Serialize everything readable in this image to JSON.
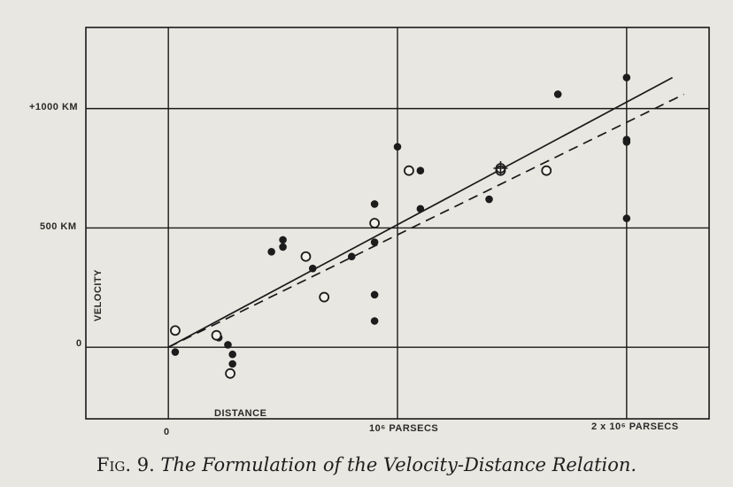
{
  "caption": {
    "figure": "Fig. 9.",
    "title": "The Formulation of the Velocity-Distance Relation."
  },
  "chart_data": {
    "type": "scatter",
    "xlabel": "DISTANCE",
    "ylabel": "VELOCITY",
    "xlim": [
      -0.36,
      2.36
    ],
    "ylim": [
      -0.3,
      1.34
    ],
    "x_ticks": [
      {
        "value": 0,
        "label": "0"
      },
      {
        "value": 1,
        "label": "10⁶ PARSECS"
      },
      {
        "value": 2,
        "label": "2 x 10⁶ PARSECS"
      }
    ],
    "y_ticks": [
      {
        "value": 0,
        "label": "0"
      },
      {
        "value": 0.5,
        "label": "500 KM"
      },
      {
        "value": 1.0,
        "label": "+1000 KM"
      }
    ],
    "grid": true,
    "series": [
      {
        "marker": "filled",
        "points": [
          [
            0.03,
            -0.02
          ],
          [
            0.22,
            0.04
          ],
          [
            0.26,
            0.01
          ],
          [
            0.28,
            -0.03
          ],
          [
            0.28,
            -0.07
          ],
          [
            0.45,
            0.4
          ],
          [
            0.5,
            0.42
          ],
          [
            0.5,
            0.45
          ],
          [
            0.63,
            0.33
          ],
          [
            0.8,
            0.38
          ],
          [
            0.9,
            0.6
          ],
          [
            0.9,
            0.44
          ],
          [
            0.9,
            0.22
          ],
          [
            0.9,
            0.11
          ],
          [
            1.0,
            0.84
          ],
          [
            1.1,
            0.74
          ],
          [
            1.1,
            0.58
          ],
          [
            1.4,
            0.62
          ],
          [
            1.7,
            1.06
          ],
          [
            2.0,
            1.13
          ],
          [
            2.0,
            0.87
          ],
          [
            2.0,
            0.86
          ],
          [
            2.0,
            0.54
          ]
        ]
      },
      {
        "marker": "open",
        "points": [
          [
            0.03,
            0.07
          ],
          [
            0.21,
            0.05
          ],
          [
            0.27,
            -0.11
          ],
          [
            0.6,
            0.38
          ],
          [
            0.68,
            0.21
          ],
          [
            0.9,
            0.52
          ],
          [
            1.05,
            0.74
          ],
          [
            1.45,
            0.74
          ],
          [
            1.65,
            0.74
          ]
        ]
      }
    ],
    "lines": [
      {
        "style": "solid",
        "x": [
          0,
          2.2
        ],
        "y": [
          0,
          1.13
        ]
      },
      {
        "style": "dashed",
        "x": [
          0,
          2.25
        ],
        "y": [
          0,
          1.06
        ]
      }
    ],
    "special_points": [
      {
        "marker": "cross-circle",
        "x": 1.45,
        "y": 0.75
      }
    ]
  }
}
